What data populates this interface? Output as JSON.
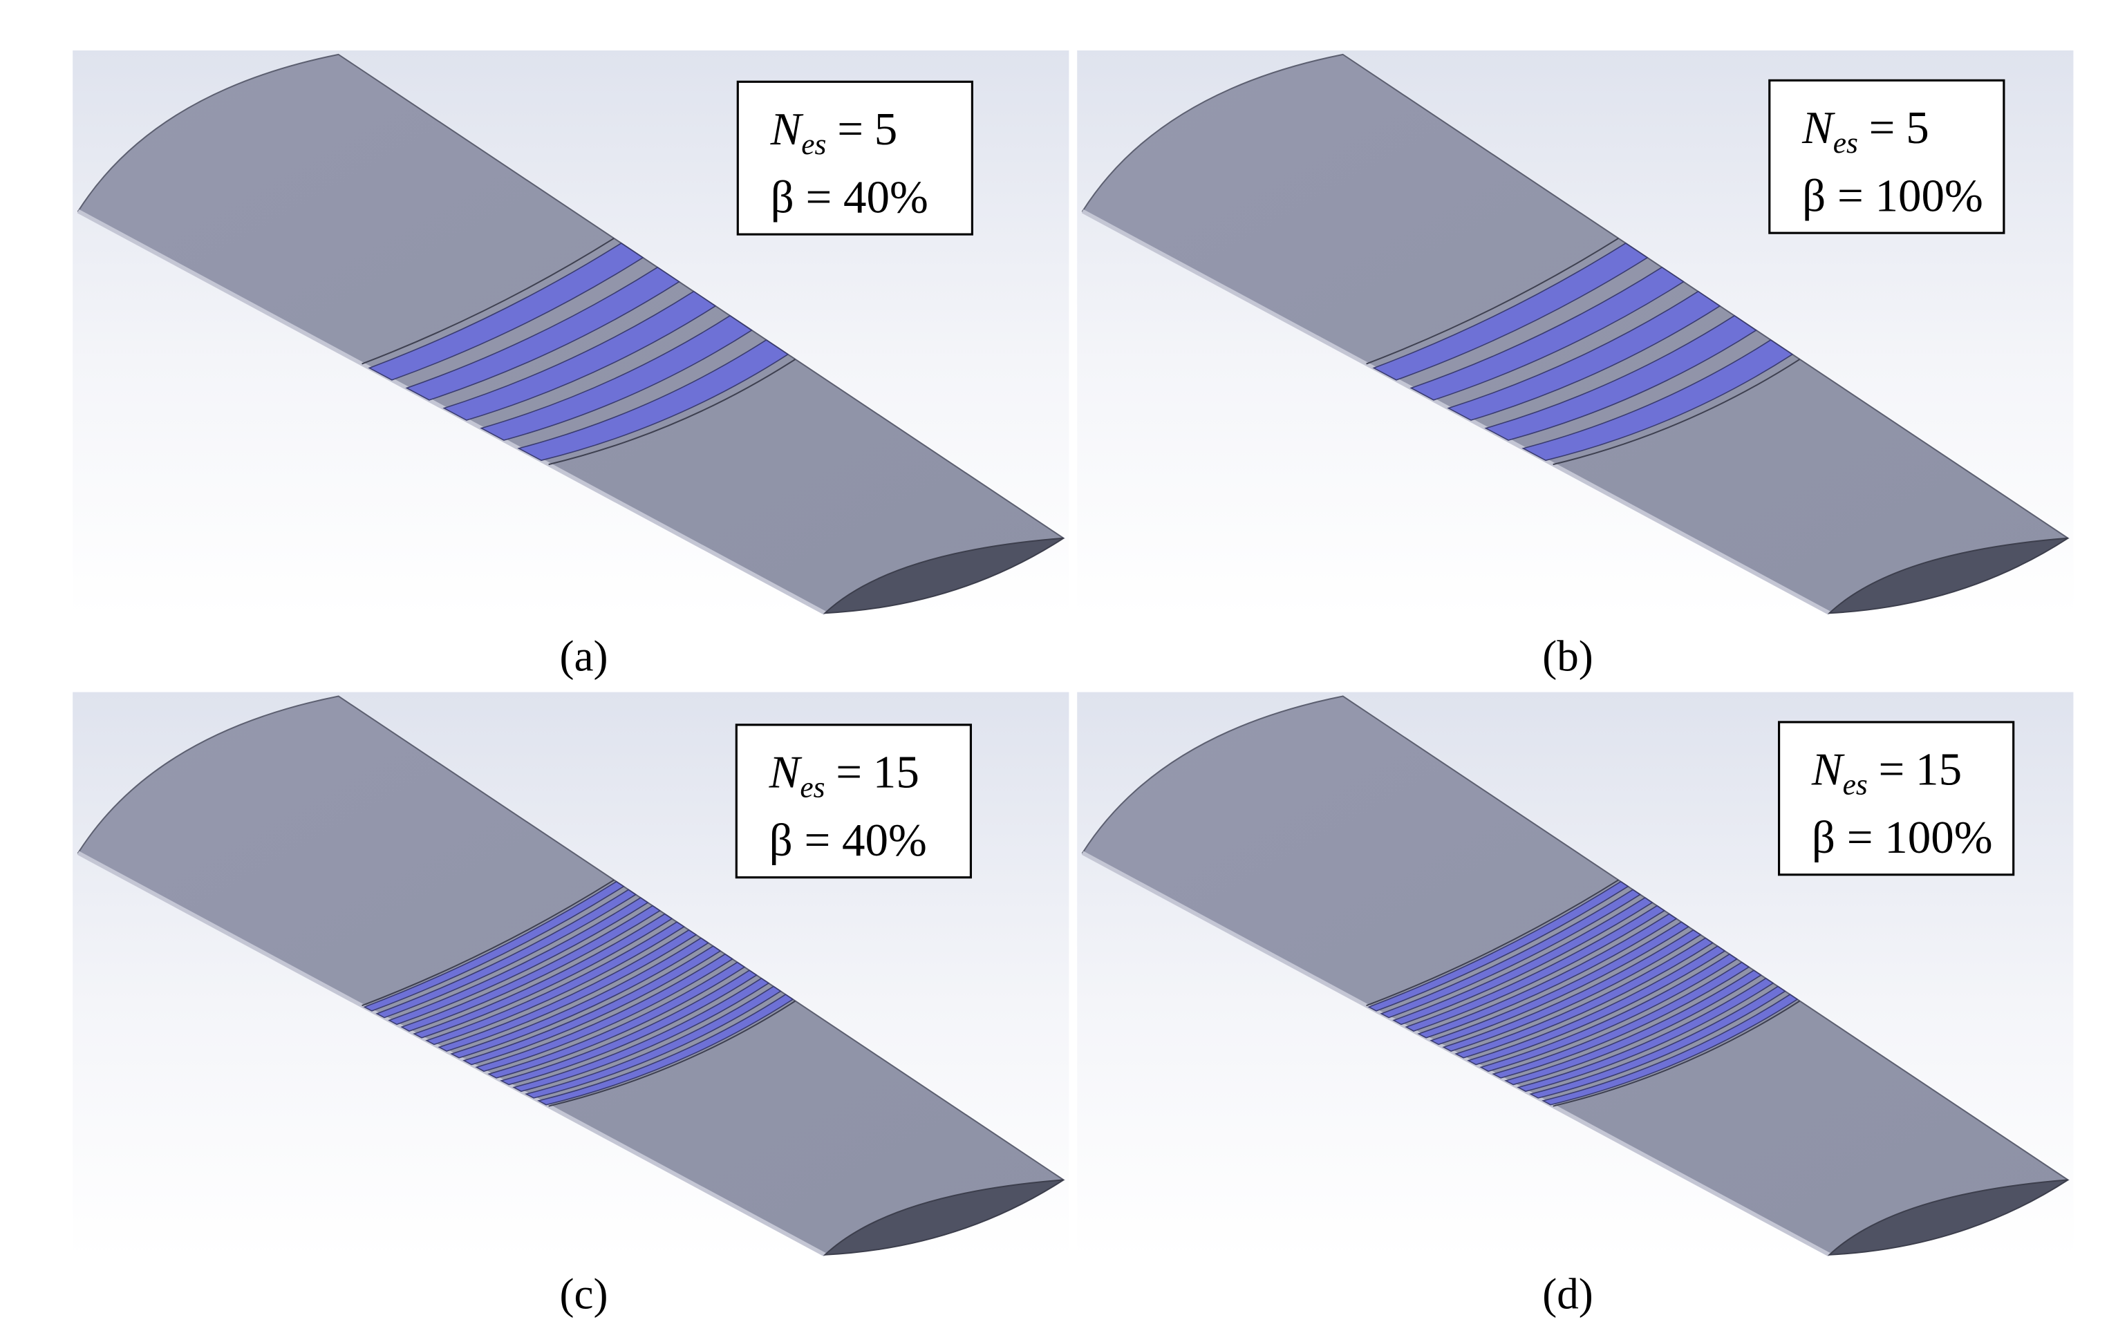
{
  "panels": [
    {
      "label": "(a)",
      "box": {
        "symbol": "N",
        "subscript": "es",
        "equals": "=",
        "n": 5,
        "beta_line": "β = 40%"
      }
    },
    {
      "label": "(b)",
      "box": {
        "symbol": "N",
        "subscript": "es",
        "equals": "=",
        "n": 5,
        "beta_line": "β = 100%"
      }
    },
    {
      "label": "(c)",
      "box": {
        "symbol": "N",
        "subscript": "es",
        "equals": "=",
        "n": 15,
        "beta_line": "β = 40%"
      }
    },
    {
      "label": "(d)",
      "box": {
        "symbol": "N",
        "subscript": "es",
        "equals": "=",
        "n": 15,
        "beta_line": "β = 100%"
      }
    }
  ]
}
